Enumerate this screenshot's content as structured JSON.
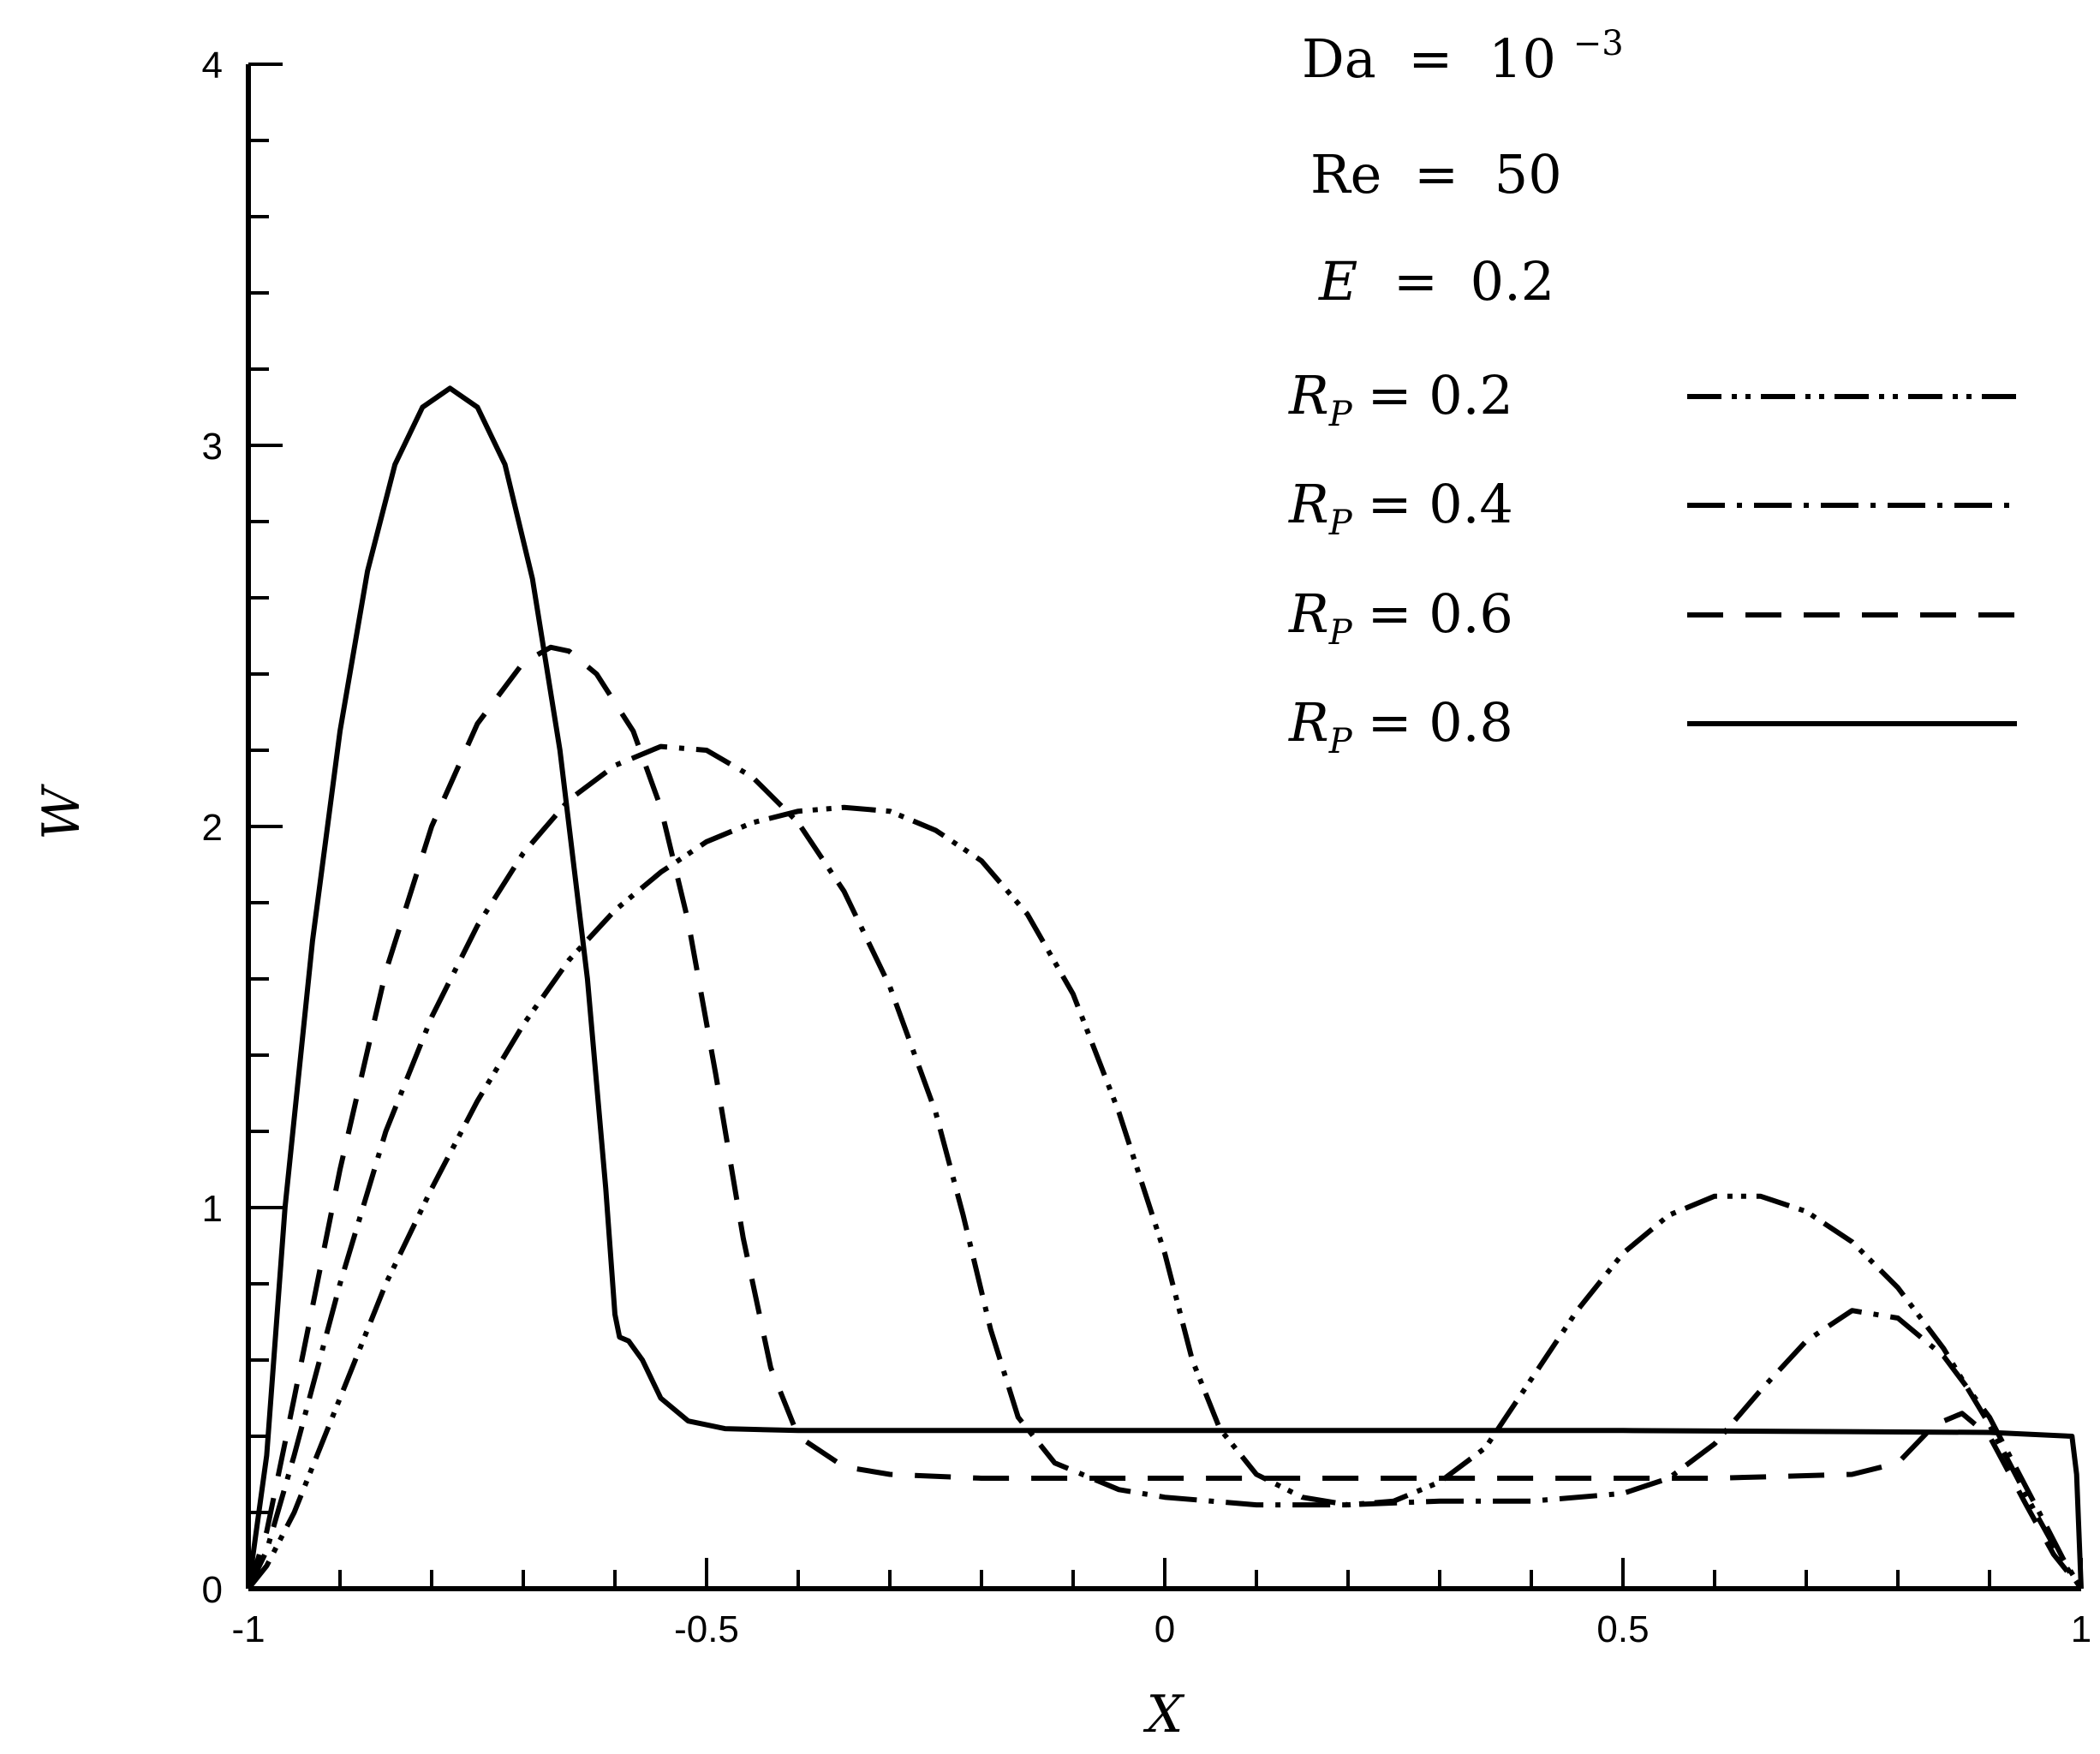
{
  "chart_data": {
    "type": "line",
    "xlabel": "X",
    "ylabel": "W",
    "xlim": [
      -1,
      1
    ],
    "ylim": [
      0,
      4
    ],
    "x_ticks": [
      {
        "value": -1,
        "label": "-1"
      },
      {
        "value": -0.5,
        "label": "-0.5"
      },
      {
        "value": 0,
        "label": "0"
      },
      {
        "value": 0.5,
        "label": "0.5"
      },
      {
        "value": 1,
        "label": "1"
      }
    ],
    "y_ticks": [
      {
        "value": 0,
        "label": "0"
      },
      {
        "value": 1,
        "label": "1"
      },
      {
        "value": 2,
        "label": "2"
      },
      {
        "value": 3,
        "label": "3"
      },
      {
        "value": 4,
        "label": "4"
      }
    ],
    "x_minor_step": 0.1,
    "y_minor_step": 0.2,
    "grid": false,
    "legend_position": "top-right",
    "parameters": [
      {
        "symbol": "Da",
        "relation": "=",
        "value": "10",
        "exponent": "−3"
      },
      {
        "symbol": "Re",
        "relation": "=",
        "value": "50"
      },
      {
        "symbol": "E",
        "relation": "=",
        "value": "0.2"
      }
    ],
    "series": [
      {
        "name": "R_P = 0.2",
        "label_symbol": "R",
        "label_sub": "P",
        "label_value": "= 0.2",
        "dash": "dash-dot-dot",
        "points": [
          [
            -1,
            0
          ],
          [
            -0.98,
            0.06
          ],
          [
            -0.95,
            0.2
          ],
          [
            -0.9,
            0.5
          ],
          [
            -0.85,
            0.8
          ],
          [
            -0.8,
            1.05
          ],
          [
            -0.75,
            1.28
          ],
          [
            -0.7,
            1.48
          ],
          [
            -0.65,
            1.65
          ],
          [
            -0.6,
            1.78
          ],
          [
            -0.55,
            1.88
          ],
          [
            -0.5,
            1.96
          ],
          [
            -0.45,
            2.01
          ],
          [
            -0.4,
            2.04
          ],
          [
            -0.35,
            2.05
          ],
          [
            -0.3,
            2.04
          ],
          [
            -0.25,
            1.99
          ],
          [
            -0.2,
            1.91
          ],
          [
            -0.15,
            1.77
          ],
          [
            -0.1,
            1.56
          ],
          [
            -0.05,
            1.25
          ],
          [
            0,
            0.88
          ],
          [
            0.03,
            0.6
          ],
          [
            0.06,
            0.42
          ],
          [
            0.1,
            0.3
          ],
          [
            0.15,
            0.24
          ],
          [
            0.2,
            0.22
          ],
          [
            0.25,
            0.23
          ],
          [
            0.3,
            0.28
          ],
          [
            0.35,
            0.37
          ],
          [
            0.4,
            0.55
          ],
          [
            0.45,
            0.73
          ],
          [
            0.5,
            0.88
          ],
          [
            0.55,
            0.98
          ],
          [
            0.6,
            1.03
          ],
          [
            0.65,
            1.03
          ],
          [
            0.7,
            0.99
          ],
          [
            0.75,
            0.91
          ],
          [
            0.8,
            0.79
          ],
          [
            0.85,
            0.63
          ],
          [
            0.9,
            0.43
          ],
          [
            0.95,
            0.2
          ],
          [
            0.98,
            0.07
          ],
          [
            1,
            0
          ]
        ]
      },
      {
        "name": "R_P = 0.4",
        "label_symbol": "R",
        "label_sub": "P",
        "label_value": "= 0.4",
        "dash": "dash-dot",
        "points": [
          [
            -1,
            0
          ],
          [
            -0.98,
            0.1
          ],
          [
            -0.95,
            0.35
          ],
          [
            -0.9,
            0.8
          ],
          [
            -0.85,
            1.2
          ],
          [
            -0.8,
            1.5
          ],
          [
            -0.75,
            1.74
          ],
          [
            -0.7,
            1.93
          ],
          [
            -0.65,
            2.07
          ],
          [
            -0.6,
            2.16
          ],
          [
            -0.55,
            2.21
          ],
          [
            -0.5,
            2.2
          ],
          [
            -0.45,
            2.13
          ],
          [
            -0.4,
            2.01
          ],
          [
            -0.35,
            1.83
          ],
          [
            -0.3,
            1.58
          ],
          [
            -0.25,
            1.25
          ],
          [
            -0.22,
            0.98
          ],
          [
            -0.19,
            0.68
          ],
          [
            -0.16,
            0.45
          ],
          [
            -0.12,
            0.33
          ],
          [
            -0.05,
            0.26
          ],
          [
            0,
            0.24
          ],
          [
            0.1,
            0.22
          ],
          [
            0.2,
            0.22
          ],
          [
            0.3,
            0.23
          ],
          [
            0.4,
            0.23
          ],
          [
            0.5,
            0.25
          ],
          [
            0.55,
            0.29
          ],
          [
            0.6,
            0.38
          ],
          [
            0.65,
            0.52
          ],
          [
            0.7,
            0.65
          ],
          [
            0.75,
            0.73
          ],
          [
            0.8,
            0.71
          ],
          [
            0.85,
            0.61
          ],
          [
            0.9,
            0.45
          ],
          [
            0.95,
            0.22
          ],
          [
            0.98,
            0.08
          ],
          [
            1,
            0
          ]
        ]
      },
      {
        "name": "R_P = 0.6",
        "label_symbol": "R",
        "label_sub": "P",
        "label_value": "= 0.6",
        "dash": "dash",
        "points": [
          [
            -1,
            0
          ],
          [
            -0.98,
            0.15
          ],
          [
            -0.95,
            0.5
          ],
          [
            -0.9,
            1.1
          ],
          [
            -0.85,
            1.62
          ],
          [
            -0.8,
            2.0
          ],
          [
            -0.75,
            2.27
          ],
          [
            -0.7,
            2.43
          ],
          [
            -0.67,
            2.47
          ],
          [
            -0.65,
            2.46
          ],
          [
            -0.62,
            2.4
          ],
          [
            -0.58,
            2.25
          ],
          [
            -0.55,
            2.05
          ],
          [
            -0.52,
            1.75
          ],
          [
            -0.49,
            1.35
          ],
          [
            -0.46,
            0.92
          ],
          [
            -0.43,
            0.58
          ],
          [
            -0.4,
            0.4
          ],
          [
            -0.35,
            0.32
          ],
          [
            -0.3,
            0.3
          ],
          [
            -0.2,
            0.29
          ],
          [
            0,
            0.29
          ],
          [
            0.2,
            0.29
          ],
          [
            0.4,
            0.29
          ],
          [
            0.6,
            0.29
          ],
          [
            0.75,
            0.3
          ],
          [
            0.8,
            0.33
          ],
          [
            0.84,
            0.43
          ],
          [
            0.87,
            0.46
          ],
          [
            0.9,
            0.4
          ],
          [
            0.94,
            0.22
          ],
          [
            0.97,
            0.09
          ],
          [
            1,
            0
          ]
        ]
      },
      {
        "name": "R_P = 0.8",
        "label_symbol": "R",
        "label_sub": "P",
        "label_value": "= 0.8",
        "dash": "solid",
        "points": [
          [
            -1,
            0
          ],
          [
            -0.98,
            0.35
          ],
          [
            -0.96,
            1.0
          ],
          [
            -0.93,
            1.7
          ],
          [
            -0.9,
            2.25
          ],
          [
            -0.87,
            2.67
          ],
          [
            -0.84,
            2.95
          ],
          [
            -0.81,
            3.1
          ],
          [
            -0.78,
            3.15
          ],
          [
            -0.75,
            3.1
          ],
          [
            -0.72,
            2.95
          ],
          [
            -0.69,
            2.65
          ],
          [
            -0.66,
            2.2
          ],
          [
            -0.63,
            1.6
          ],
          [
            -0.61,
            1.05
          ],
          [
            -0.6,
            0.72
          ],
          [
            -0.595,
            0.66
          ],
          [
            -0.585,
            0.65
          ],
          [
            -0.57,
            0.6
          ],
          [
            -0.55,
            0.5
          ],
          [
            -0.52,
            0.44
          ],
          [
            -0.48,
            0.42
          ],
          [
            -0.4,
            0.415
          ],
          [
            0,
            0.415
          ],
          [
            0.5,
            0.415
          ],
          [
            0.9,
            0.41
          ],
          [
            0.99,
            0.4
          ],
          [
            0.995,
            0.3
          ],
          [
            1,
            0
          ]
        ]
      }
    ]
  }
}
